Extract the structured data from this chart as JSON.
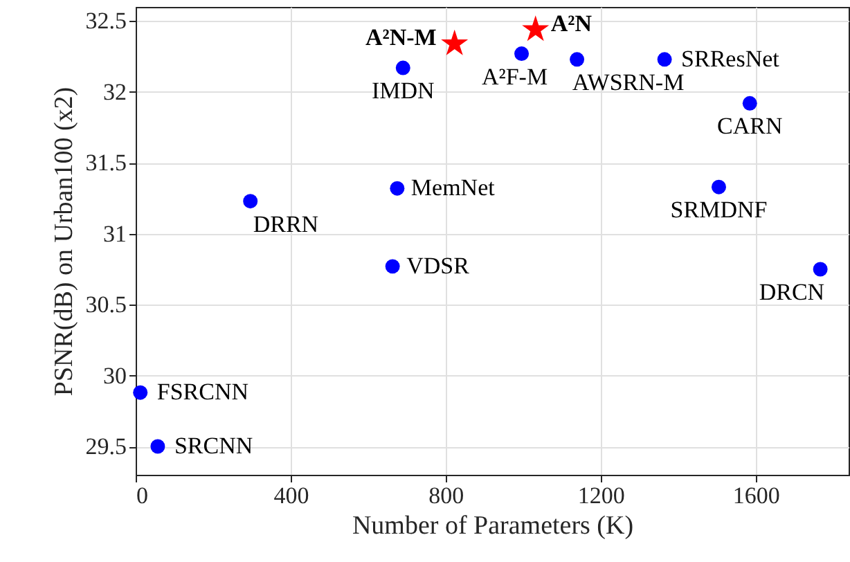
{
  "chart_data": {
    "type": "scatter",
    "xlabel": "Number of Parameters (K)",
    "ylabel": "PSNR(dB) on Urban100 (x2)",
    "xlim": [
      0,
      1840
    ],
    "ylim": [
      29.3,
      32.6
    ],
    "xticks": [
      0,
      400,
      800,
      1200,
      1600
    ],
    "yticks": [
      29.5,
      30,
      30.5,
      31,
      31.5,
      32,
      32.5
    ],
    "grid": true,
    "series": [
      {
        "color": "#0000ff",
        "marker": "circle",
        "x": [
          690,
          296,
          675,
          663,
          996,
          1139,
          1365,
          1585,
          1505,
          1767,
          12,
          57
        ],
        "values": [
          32.17,
          31.23,
          31.32,
          30.77,
          32.27,
          32.23,
          32.23,
          31.92,
          31.33,
          30.75,
          29.88,
          29.5
        ]
      },
      {
        "color": "#ff0000",
        "marker": "star",
        "x": [
          823,
          1032
        ],
        "values": [
          32.34,
          32.44
        ]
      }
    ],
    "annotations": [
      {
        "text": "IMDN",
        "x": 690,
        "y": 32.17
      },
      {
        "text": "DRRN",
        "x": 296,
        "y": 31.23
      },
      {
        "text": "MemNet",
        "x": 675,
        "y": 31.32
      },
      {
        "text": "VDSR",
        "x": 663,
        "y": 30.77
      },
      {
        "text": "A²F-M",
        "x": 996,
        "y": 32.27
      },
      {
        "text": "AWSRN-M",
        "x": 1139,
        "y": 32.23
      },
      {
        "text": "SRResNet",
        "x": 1365,
        "y": 32.23
      },
      {
        "text": "CARN",
        "x": 1585,
        "y": 31.92
      },
      {
        "text": "SRMDNF",
        "x": 1505,
        "y": 31.33
      },
      {
        "text": "DRCN",
        "x": 1767,
        "y": 30.75
      },
      {
        "text": "FSRCNN",
        "x": 12,
        "y": 29.88
      },
      {
        "text": "SRCNN",
        "x": 57,
        "y": 29.5
      },
      {
        "text": "A²N-M",
        "x": 823,
        "y": 32.34
      },
      {
        "text": "A²N",
        "x": 1032,
        "y": 32.44
      }
    ]
  }
}
